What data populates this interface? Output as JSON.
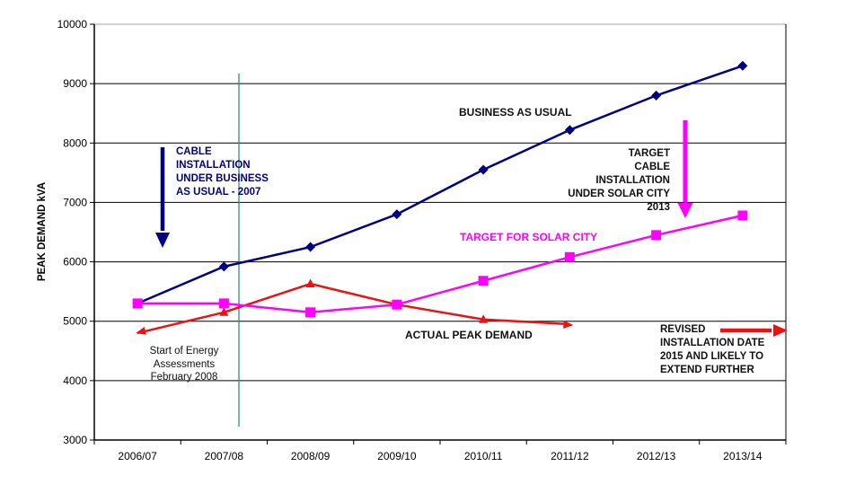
{
  "page": {
    "background": "#ffffff"
  },
  "chart_data": {
    "type": "line",
    "title": "",
    "xlabel": "",
    "ylabel": "PEAK DEMAND kVA",
    "ylim": [
      3000,
      10000
    ],
    "ytick_step": 1000,
    "yticks": [
      3000,
      4000,
      5000,
      6000,
      7000,
      8000,
      9000,
      10000
    ],
    "grid": "horizontal",
    "legend_position": "none-inline-labels",
    "categories": [
      "2006/07",
      "2007/08",
      "2008/09",
      "2009/10",
      "2010/11",
      "2011/12",
      "2012/13",
      "2013/14"
    ],
    "series": [
      {
        "name": "BUSINESS AS USUAL",
        "color": "#000080",
        "marker": "diamond",
        "values": [
          5300,
          5920,
          6250,
          6800,
          7550,
          8220,
          8800,
          9300
        ]
      },
      {
        "name": "ACTUAL PEAK DEMAND",
        "color": "#EE1111",
        "marker": "triangle",
        "start_arrow": true,
        "end_arrow": true,
        "values": [
          4800,
          5150,
          5630,
          5280,
          5030,
          4950
        ]
      },
      {
        "name": "TARGET FOR SOLAR CITY",
        "color": "#FF00FF",
        "marker": "square",
        "values": [
          5300,
          5300,
          5150,
          5280,
          5680,
          6080,
          6450,
          6780
        ]
      }
    ],
    "event_line": {
      "label": "Start of Energy Assessments February 2008",
      "color": "#2E8B8A",
      "x_category": "2007/08"
    }
  },
  "annotations": {
    "cable_bau": {
      "text": "CABLE\nINSTALLATION\nUNDER BUSINESS\nAS USUAL - 2007",
      "color": "#000080",
      "arrow": "down"
    },
    "bau_label": {
      "text": "BUSINESS AS USUAL"
    },
    "target_label": {
      "text": "TARGET FOR SOLAR CITY",
      "color": "#FF00FF"
    },
    "target_cable": {
      "text": "TARGET\nCABLE\nINSTALLATION\nUNDER SOLAR CITY\n2013",
      "arrow": "down",
      "arrow_color": "#FF00FF"
    },
    "start_energy": {
      "text": "Start of Energy\nAssessments\nFebruary 2008"
    },
    "actual_label": {
      "text": "ACTUAL PEAK DEMAND"
    },
    "revised": {
      "text": "REVISED\nINSTALLATION DATE\n2015 AND LIKELY TO\nEXTEND FURTHER",
      "arrow": "right",
      "arrow_color": "#EE1111"
    },
    "arrow_colors": {
      "navy": "#000080",
      "magenta": "#FF00FF",
      "red": "#EE1111"
    }
  }
}
